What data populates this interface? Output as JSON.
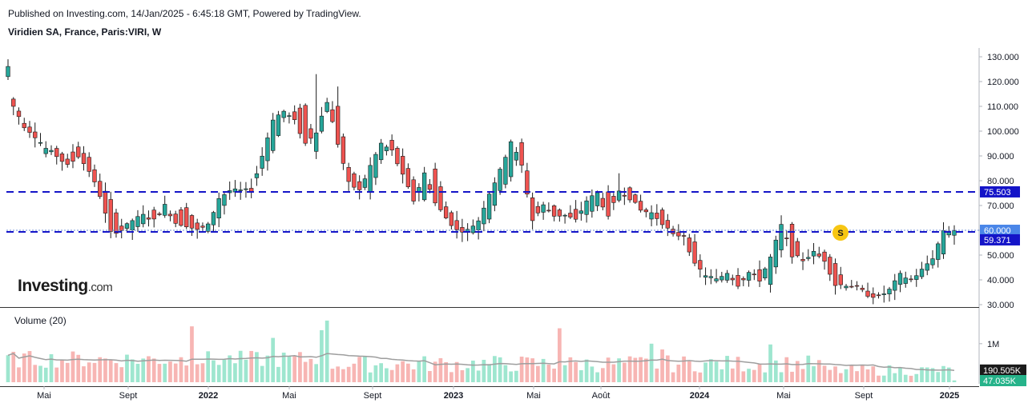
{
  "header": {
    "published": "Published on Investing.com, 14/Jan/2025 - 6:45:18 GMT, Powered by TradingView.",
    "symbol": "Viridien SA, France, Paris:VIRI, W"
  },
  "logo": {
    "word": "Investing",
    "suffix": ".com"
  },
  "volume_panel": {
    "title": "Volume (20)",
    "tick_label": "1M"
  },
  "colors": {
    "up": "#26a69a",
    "down": "#ef5350",
    "up_vol": "#9ee6cf",
    "down_vol": "#f7b5b3",
    "level_line": "#1414c8",
    "last_tag": "#4a86e8",
    "ma_line": "#9e9e9e",
    "marker": "#f7c613"
  },
  "price_axis": {
    "ticks": [
      "130.000",
      "120.000",
      "110.000",
      "100.000",
      "90.000",
      "80.000",
      "70.000",
      "60.000",
      "50.000",
      "40.000",
      "30.000"
    ]
  },
  "price_tags": {
    "level_upper": "75.503",
    "last": "60.000",
    "level_lower": "59.371"
  },
  "volume_tags": {
    "ma": "190.505K",
    "last": "47.035K"
  },
  "event_marker": {
    "label": "S"
  },
  "time_axis": [
    {
      "label": "Mai",
      "bold": false
    },
    {
      "label": "Sept",
      "bold": false
    },
    {
      "label": "2022",
      "bold": true
    },
    {
      "label": "Mai",
      "bold": false
    },
    {
      "label": "Sept",
      "bold": false
    },
    {
      "label": "2023",
      "bold": true
    },
    {
      "label": "Mai",
      "bold": false
    },
    {
      "label": "Août",
      "bold": false
    },
    {
      "label": "2024",
      "bold": true
    },
    {
      "label": "Mai",
      "bold": false
    },
    {
      "label": "Sept",
      "bold": false
    },
    {
      "label": "2025",
      "bold": true
    }
  ],
  "chart_data": {
    "type": "candlestick",
    "title": "Viridien SA, France, Paris:VIRI, W",
    "interval": "weekly",
    "y_axis": {
      "ylim": [
        28,
        135
      ],
      "ticks": [
        30,
        40,
        50,
        60,
        70,
        80,
        90,
        100,
        110,
        120,
        130
      ]
    },
    "horizontal_levels": [
      75.503,
      59.371
    ],
    "last_price": 60.0,
    "x_labels": [
      "Mai",
      "Sept",
      "2022",
      "Mai",
      "Sept",
      "2023",
      "Mai",
      "Août",
      "2024",
      "Mai",
      "Sept",
      "2025"
    ],
    "anchors": [
      [
        0,
        122,
        126
      ],
      [
        1,
        113,
        110
      ],
      [
        3,
        103,
        102
      ],
      [
        5,
        100,
        98
      ],
      [
        7,
        91,
        93
      ],
      [
        9,
        93,
        90
      ],
      [
        11,
        89,
        86
      ],
      [
        13,
        94,
        90
      ],
      [
        15,
        89,
        84
      ],
      [
        17,
        80,
        74
      ],
      [
        19,
        72,
        59
      ],
      [
        21,
        62,
        60
      ],
      [
        23,
        60,
        64
      ],
      [
        25,
        63,
        66
      ],
      [
        27,
        68,
        64
      ],
      [
        29,
        66,
        70
      ],
      [
        31,
        67,
        63
      ],
      [
        33,
        69,
        62
      ],
      [
        35,
        63,
        60
      ],
      [
        37,
        60,
        62
      ],
      [
        39,
        65,
        73
      ],
      [
        41,
        75,
        76
      ],
      [
        43,
        76,
        76
      ],
      [
        45,
        77,
        76
      ],
      [
        47,
        85,
        90
      ],
      [
        49,
        92,
        105
      ],
      [
        51,
        105,
        108
      ],
      [
        53,
        108,
        104
      ],
      [
        55,
        110,
        95
      ],
      [
        57,
        92,
        100
      ],
      [
        59,
        108,
        112
      ],
      [
        61,
        110,
        95
      ],
      [
        63,
        85,
        79
      ],
      [
        65,
        80,
        76
      ],
      [
        67,
        75,
        86
      ],
      [
        69,
        88,
        95
      ],
      [
        71,
        96,
        92
      ],
      [
        73,
        90,
        82
      ],
      [
        75,
        80,
        72
      ],
      [
        77,
        72,
        83
      ],
      [
        79,
        85,
        71
      ],
      [
        81,
        70,
        65
      ],
      [
        83,
        64,
        60
      ],
      [
        85,
        59,
        60
      ],
      [
        87,
        60,
        64
      ],
      [
        89,
        65,
        75
      ],
      [
        91,
        76,
        84
      ],
      [
        93,
        82,
        96
      ],
      [
        95,
        95,
        86
      ],
      [
        97,
        73,
        64
      ],
      [
        99,
        67,
        70
      ],
      [
        101,
        70,
        66
      ],
      [
        103,
        66,
        66
      ],
      [
        105,
        68,
        64
      ],
      [
        107,
        66,
        72
      ],
      [
        109,
        70,
        75
      ],
      [
        111,
        76,
        65
      ],
      [
        113,
        72,
        76
      ],
      [
        115,
        77,
        73
      ],
      [
        117,
        72,
        68
      ],
      [
        119,
        65,
        67
      ],
      [
        121,
        68,
        63
      ],
      [
        123,
        60,
        58
      ],
      [
        125,
        58,
        58
      ],
      [
        127,
        55,
        46
      ],
      [
        129,
        41,
        42
      ],
      [
        131,
        40,
        40
      ],
      [
        133,
        40,
        43
      ],
      [
        135,
        42,
        38
      ],
      [
        137,
        40,
        43
      ],
      [
        139,
        44,
        40
      ],
      [
        141,
        38,
        49
      ],
      [
        143,
        52,
        62
      ],
      [
        145,
        62,
        50
      ],
      [
        147,
        48,
        48
      ],
      [
        149,
        50,
        51
      ],
      [
        151,
        51,
        48
      ],
      [
        153,
        47,
        38
      ],
      [
        155,
        37,
        38
      ],
      [
        157,
        38,
        37
      ],
      [
        159,
        35,
        34
      ],
      [
        161,
        34,
        33
      ],
      [
        163,
        34,
        36
      ],
      [
        165,
        38,
        42
      ],
      [
        167,
        40,
        40
      ],
      [
        169,
        41,
        44
      ],
      [
        171,
        46,
        49
      ],
      [
        173,
        50,
        60
      ],
      [
        174,
        58,
        60
      ]
    ],
    "volume_ma_approx": 190505,
    "last_volume": 47035
  }
}
